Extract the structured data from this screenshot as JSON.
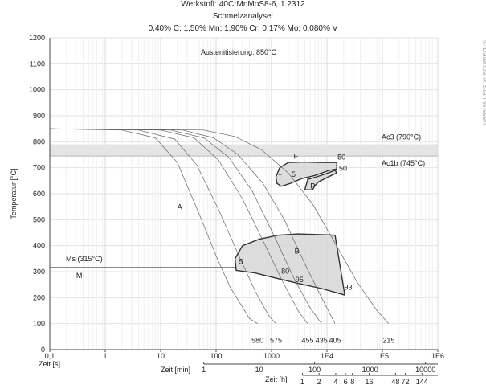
{
  "header": {
    "material": "Werkstoff: 40CrMnMoS8-6, 1.2312",
    "analysis_label": "Schmelzanalyse:",
    "composition": "0,40% C; 1,50% Mn; 1,90% Cr; 0,17% Mo; 0,080% V"
  },
  "watermark": "© Datenbank StahlWissen",
  "chart_data": {
    "type": "line",
    "title": "Werkstoff: 40CrMnMoS8-6, 1.2312",
    "ylabel": "Temperatur [°C]",
    "xlabel": "Zeit [s]",
    "x_scale": "log",
    "xlim": [
      0.1,
      1000000
    ],
    "ylim": [
      0,
      1200
    ],
    "grid": true,
    "y_ticks": [
      "0",
      "100",
      "200",
      "300",
      "400",
      "500",
      "600",
      "700",
      "800",
      "900",
      "1000",
      "1100",
      "1200"
    ],
    "x_tick_labels": [
      "0,1",
      "1",
      "10",
      "100",
      "1000",
      "1E4",
      "1E5",
      "1E6"
    ],
    "x_tick_values": [
      0.1,
      1,
      10,
      100,
      1000,
      10000,
      100000,
      1000000
    ],
    "min_axis": {
      "label": "Zeit [min]",
      "ticks": [
        "1",
        "10",
        "100",
        "1000",
        "10000"
      ],
      "values": [
        1,
        10,
        100,
        1000,
        10000
      ]
    },
    "h_axis": {
      "label": "Zeit [h]",
      "ticks": [
        "1",
        "2",
        "4",
        "6",
        "8",
        "16",
        "48",
        "72",
        "144"
      ],
      "values": [
        1,
        2,
        4,
        6,
        8,
        16,
        48,
        72,
        144
      ]
    },
    "austenitization": "Austenitisierung: 850°C",
    "reference_lines": [
      {
        "label": "Ac3 (790°C)",
        "y": 790
      },
      {
        "label": "Ac1b (745°C)",
        "y": 745
      },
      {
        "label": "Ms (315°C)",
        "y": 315
      }
    ],
    "region_labels": [
      {
        "text": "A",
        "x": 20,
        "y": 540
      },
      {
        "text": "M",
        "x": 0.3,
        "y": 275
      },
      {
        "text": "F",
        "x": 2500,
        "y": 735
      },
      {
        "text": "P",
        "x": 5000,
        "y": 620
      }
    ],
    "cooling_curves": [
      {
        "points": [
          [
            0.1,
            850
          ],
          [
            2,
            845
          ],
          [
            8,
            815
          ],
          [
            20,
            720
          ],
          [
            50,
            520
          ],
          [
            110,
            340
          ],
          [
            180,
            240
          ],
          [
            400,
            120
          ],
          [
            560,
            100
          ]
        ],
        "label": "580"
      },
      {
        "points": [
          [
            0.1,
            850
          ],
          [
            4,
            845
          ],
          [
            18,
            810
          ],
          [
            45,
            710
          ],
          [
            110,
            540
          ],
          [
            260,
            360
          ],
          [
            520,
            220
          ],
          [
            900,
            130
          ],
          [
            1200,
            100
          ]
        ],
        "label": "575"
      },
      {
        "points": [
          [
            0.1,
            850
          ],
          [
            10,
            845
          ],
          [
            40,
            815
          ],
          [
            110,
            730
          ],
          [
            300,
            580
          ],
          [
            700,
            420
          ],
          [
            1600,
            260
          ],
          [
            3200,
            140
          ],
          [
            4500,
            100
          ]
        ],
        "label": "455"
      },
      {
        "points": [
          [
            0.1,
            850
          ],
          [
            15,
            845
          ],
          [
            60,
            815
          ],
          [
            170,
            740
          ],
          [
            450,
            610
          ],
          [
            1100,
            440
          ],
          [
            2600,
            270
          ],
          [
            5000,
            160
          ],
          [
            8000,
            100
          ]
        ],
        "label": "435"
      },
      {
        "points": [
          [
            0.1,
            850
          ],
          [
            25,
            845
          ],
          [
            90,
            815
          ],
          [
            250,
            750
          ],
          [
            700,
            640
          ],
          [
            1700,
            500
          ],
          [
            4000,
            330
          ],
          [
            8000,
            200
          ],
          [
            14000,
            100
          ]
        ],
        "label": "405"
      },
      {
        "points": [
          [
            0.1,
            850
          ],
          [
            60,
            845
          ],
          [
            220,
            820
          ],
          [
            650,
            770
          ],
          [
            2000,
            680
          ],
          [
            5500,
            560
          ],
          [
            14000,
            410
          ],
          [
            35000,
            260
          ],
          [
            80000,
            150
          ],
          [
            130000,
            100
          ]
        ],
        "label": "215"
      }
    ],
    "phase_regions": [
      {
        "name": "F",
        "start_label": "1",
        "end_label": "50",
        "points": [
          [
            2000,
            720
          ],
          [
            1400,
            700
          ],
          [
            1200,
            665
          ],
          [
            1250,
            640
          ],
          [
            1500,
            628
          ],
          [
            2200,
            640
          ],
          [
            3500,
            658
          ],
          [
            6000,
            670
          ],
          [
            11000,
            690
          ],
          [
            15000,
            695
          ],
          [
            15000,
            720
          ],
          [
            8000,
            720
          ],
          [
            4000,
            722
          ],
          [
            2000,
            720
          ]
        ]
      },
      {
        "name": "P",
        "start_label": "5",
        "end_label": "50",
        "points": [
          [
            4000,
            615
          ],
          [
            4500,
            655
          ],
          [
            6500,
            665
          ],
          [
            9000,
            675
          ],
          [
            14000,
            690
          ],
          [
            15000,
            680
          ],
          [
            9500,
            660
          ],
          [
            7000,
            645
          ],
          [
            6000,
            630
          ],
          [
            5500,
            615
          ],
          [
            4000,
            615
          ]
        ]
      },
      {
        "name": "B",
        "start_label": "5",
        "end_label": "93",
        "points": [
          [
            230,
            305
          ],
          [
            220,
            350
          ],
          [
            300,
            400
          ],
          [
            600,
            425
          ],
          [
            1300,
            440
          ],
          [
            3000,
            445
          ],
          [
            9000,
            442
          ],
          [
            14000,
            440
          ],
          [
            21000,
            210
          ],
          [
            8000,
            235
          ],
          [
            3000,
            255
          ],
          [
            1200,
            275
          ],
          [
            500,
            295
          ],
          [
            230,
            305
          ]
        ],
        "annotations": [
          "5",
          "80",
          "95",
          "93"
        ]
      }
    ]
  }
}
